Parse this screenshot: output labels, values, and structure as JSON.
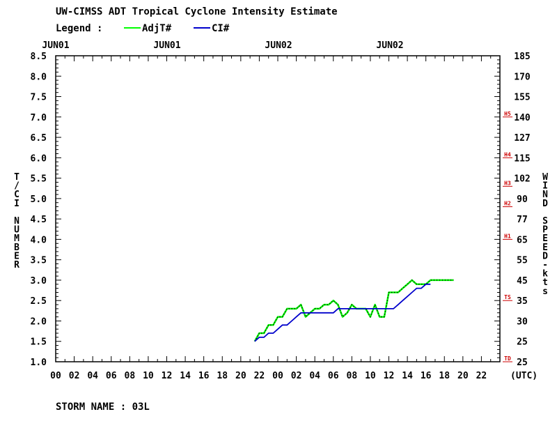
{
  "chart_data": {
    "type": "line",
    "title": "UW-CIMSS ADT Tropical Cyclone Intensity Estimate",
    "legend_label": "Legend :",
    "legend_placement": "top-left",
    "date_labels": [
      "JUN01",
      "JUN01",
      "JUN02",
      "JUN02"
    ],
    "x_tick_labels": [
      "00",
      "02",
      "04",
      "06",
      "08",
      "10",
      "12",
      "14",
      "16",
      "18",
      "20",
      "22",
      "00",
      "02",
      "04",
      "06",
      "08",
      "10",
      "12",
      "14",
      "16",
      "18",
      "20",
      "22"
    ],
    "x_unit_label": "(UTC)",
    "xlim_hours": [
      0,
      48
    ],
    "ylabel_left": "T/CI NUMBER",
    "ylabel_right": "WIND SPEED-kts",
    "ylim": [
      1.0,
      8.5
    ],
    "y_ticks_left": [
      "1.0",
      "1.5",
      "2.0",
      "2.5",
      "3.0",
      "3.5",
      "4.0",
      "4.5",
      "5.0",
      "5.5",
      "6.0",
      "6.5",
      "7.0",
      "7.5",
      "8.0",
      "8.5"
    ],
    "y_ticks_right": [
      "25",
      "25",
      "30",
      "35",
      "45",
      "55",
      "65",
      "77",
      "90",
      "102",
      "115",
      "127",
      "140",
      "155",
      "170",
      "185"
    ],
    "category_markers": [
      {
        "label": "TD",
        "ci": 1.0
      },
      {
        "label": "TS",
        "ci": 2.5
      },
      {
        "label": "H1",
        "ci": 4.0
      },
      {
        "label": "H2",
        "ci": 4.8
      },
      {
        "label": "H3",
        "ci": 5.3
      },
      {
        "label": "H4",
        "ci": 6.0
      },
      {
        "label": "H5",
        "ci": 7.0
      }
    ],
    "series": [
      {
        "name": "AdjT#",
        "color": "#00ff00",
        "x_hours": [
          21.5,
          22.0,
          22.5,
          23.0,
          23.5,
          24.0,
          24.5,
          25.0,
          25.5,
          26.0,
          26.5,
          27.0,
          27.5,
          28.0,
          28.5,
          29.0,
          29.5,
          30.0,
          30.5,
          31.0,
          31.5,
          32.0,
          32.5,
          33.0,
          33.5,
          34.0,
          34.5,
          35.0,
          35.5,
          36.0,
          36.5,
          37.0,
          37.5,
          38.0,
          38.5,
          39.0,
          39.5,
          40.0,
          40.5,
          41.0,
          41.5,
          42.0,
          42.5,
          43.0
        ],
        "values": [
          1.5,
          1.7,
          1.7,
          1.9,
          1.9,
          2.1,
          2.1,
          2.3,
          2.3,
          2.3,
          2.4,
          2.1,
          2.2,
          2.3,
          2.3,
          2.4,
          2.4,
          2.5,
          2.4,
          2.1,
          2.2,
          2.4,
          2.3,
          2.3,
          2.3,
          2.1,
          2.4,
          2.1,
          2.1,
          2.7,
          2.7,
          2.7,
          2.8,
          2.9,
          3.0,
          2.9,
          2.9,
          2.9,
          3.0,
          3.0,
          3.0,
          3.0,
          3.0,
          3.0
        ]
      },
      {
        "name": "CI#",
        "color": "#0000cc",
        "x_hours": [
          21.5,
          22.0,
          22.5,
          23.0,
          23.5,
          24.0,
          24.5,
          25.0,
          25.5,
          26.0,
          26.5,
          27.0,
          28.0,
          29.0,
          30.0,
          30.5,
          31.0,
          32.0,
          33.0,
          34.0,
          35.0,
          36.0,
          36.5,
          37.0,
          37.5,
          38.0,
          38.5,
          39.0,
          39.5,
          40.0,
          40.5
        ],
        "values": [
          1.5,
          1.6,
          1.6,
          1.7,
          1.7,
          1.8,
          1.9,
          1.9,
          2.0,
          2.1,
          2.2,
          2.2,
          2.2,
          2.2,
          2.2,
          2.3,
          2.3,
          2.3,
          2.3,
          2.3,
          2.3,
          2.3,
          2.3,
          2.4,
          2.5,
          2.6,
          2.7,
          2.8,
          2.8,
          2.9,
          2.9
        ]
      }
    ]
  },
  "footer": {
    "storm_name": "STORM NAME : 03L"
  }
}
